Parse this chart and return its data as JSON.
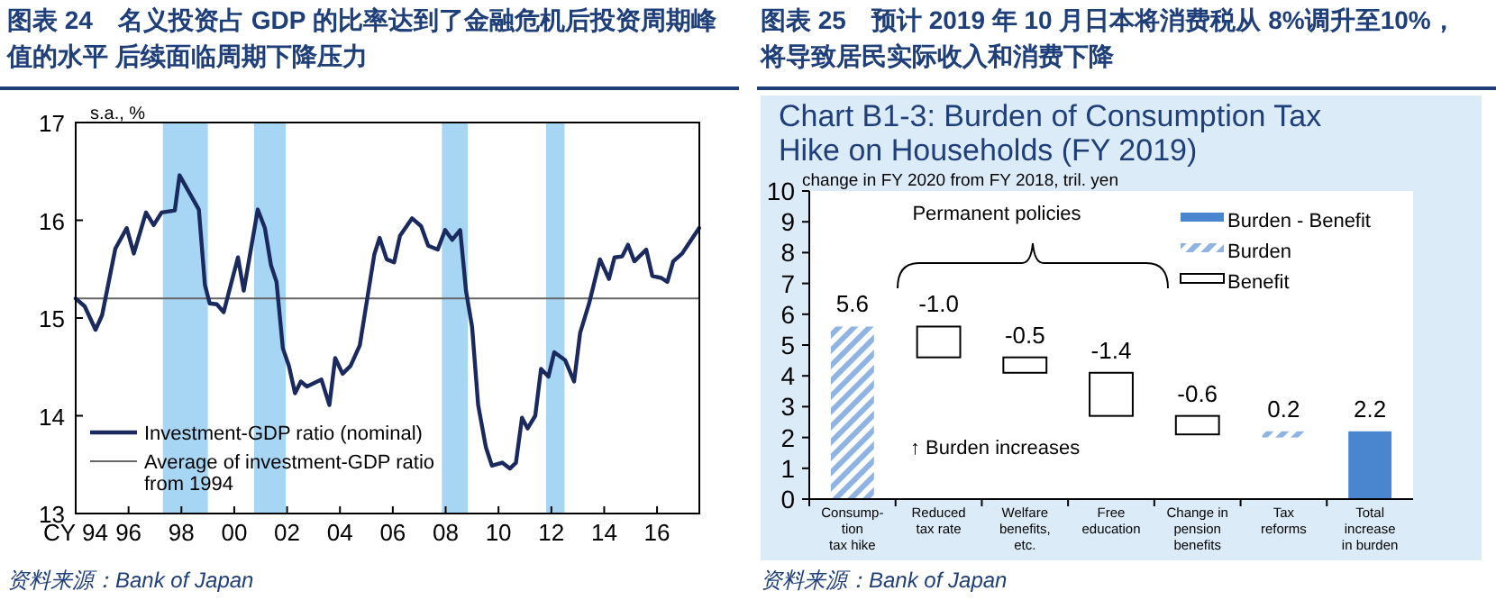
{
  "chart_data": [
    {
      "type": "line",
      "title": "图表 24　名义投资占 GDP 的比率达到了金融危机后投资周期峰值的水平 后续面临周期下降压力",
      "ylabel": "s.a., %",
      "xlim": [
        1994,
        2017.6
      ],
      "ylim": [
        13,
        17
      ],
      "yticks": [
        13,
        14,
        15,
        16,
        17
      ],
      "xticks": [
        {
          "value": 1994,
          "label": "CY 94"
        },
        {
          "value": 1996,
          "label": "96"
        },
        {
          "value": 1998,
          "label": "98"
        },
        {
          "value": 2000,
          "label": "00"
        },
        {
          "value": 2002,
          "label": "02"
        },
        {
          "value": 2004,
          "label": "04"
        },
        {
          "value": 2006,
          "label": "06"
        },
        {
          "value": 2008,
          "label": "08"
        },
        {
          "value": 2010,
          "label": "10"
        },
        {
          "value": 2012,
          "label": "12"
        },
        {
          "value": 2014,
          "label": "14"
        },
        {
          "value": 2016,
          "label": "16"
        }
      ],
      "series": [
        {
          "name": "Investment-GDP ratio (nominal)",
          "color": "#1b2a5e",
          "x": [
            1994.0,
            1994.34,
            1994.75,
            1995.0,
            1995.5,
            1995.93,
            1996.2,
            1996.66,
            1996.95,
            1997.25,
            1997.75,
            1997.93,
            1998.66,
            1998.89,
            1999.07,
            1999.34,
            1999.6,
            2000.14,
            2000.36,
            2000.89,
            2001.16,
            2001.39,
            2001.6,
            2001.84,
            2002.07,
            2002.3,
            2002.52,
            2002.75,
            2003.3,
            2003.6,
            2003.82,
            2004.1,
            2004.4,
            2004.75,
            2005.3,
            2005.5,
            2005.77,
            2006.05,
            2006.27,
            2006.73,
            2007.07,
            2007.34,
            2007.7,
            2007.98,
            2008.25,
            2008.55,
            2008.77,
            2009.0,
            2009.23,
            2009.52,
            2009.75,
            2010.14,
            2010.43,
            2010.66,
            2010.89,
            2011.1,
            2011.39,
            2011.61,
            2011.89,
            2012.11,
            2012.52,
            2012.86,
            2013.09,
            2013.43,
            2013.84,
            2014.18,
            2014.39,
            2014.68,
            2014.9,
            2015.14,
            2015.59,
            2015.82,
            2016.16,
            2016.39,
            2016.61,
            2016.95,
            2017.59
          ],
          "values": [
            15.2,
            15.12,
            14.88,
            15.03,
            15.71,
            15.92,
            15.66,
            16.08,
            15.95,
            16.08,
            16.1,
            16.46,
            16.11,
            15.34,
            15.15,
            15.14,
            15.06,
            15.62,
            15.28,
            16.11,
            15.92,
            15.54,
            15.37,
            14.69,
            14.51,
            14.23,
            14.35,
            14.3,
            14.37,
            14.11,
            14.59,
            14.43,
            14.51,
            14.72,
            15.65,
            15.82,
            15.6,
            15.57,
            15.84,
            16.02,
            15.94,
            15.74,
            15.7,
            15.9,
            15.8,
            15.9,
            15.28,
            14.91,
            14.11,
            13.68,
            13.49,
            13.52,
            13.46,
            13.52,
            13.98,
            13.87,
            14.0,
            14.48,
            14.4,
            14.65,
            14.57,
            14.35,
            14.85,
            15.15,
            15.6,
            15.4,
            15.62,
            15.63,
            15.75,
            15.58,
            15.7,
            15.43,
            15.41,
            15.37,
            15.58,
            15.66,
            15.92
          ]
        }
      ],
      "ref_lines": [
        {
          "axis": "y",
          "value": 15.2,
          "label": "Average of investment-GDP ratio\nfrom 1994",
          "color": "#666666"
        }
      ],
      "bands": [
        {
          "axis": "x",
          "from": 1997.3,
          "to": 1999.0,
          "color": "#a6d6f4"
        },
        {
          "axis": "x",
          "from": 2000.75,
          "to": 2001.95,
          "color": "#a6d6f4"
        },
        {
          "axis": "x",
          "from": 2007.86,
          "to": 2008.84,
          "color": "#a6d6f4"
        },
        {
          "axis": "x",
          "from": 2011.8,
          "to": 2012.5,
          "color": "#a6d6f4"
        }
      ],
      "legend": "bottom left",
      "annotations": [
        "资料来源：Bank of Japan"
      ]
    },
    {
      "type": "bar",
      "title": "图表 25　预计 2019 年 10 月日本将消费税从 8%调升至10%，将导致居民实际收入和消费下降",
      "subtitle": "Chart B1-3: Burden of Consumption Tax\nHike on Households (FY 2019)",
      "ylabel": "change in FY 2020 from FY 2018, tril. yen",
      "categories": [
        "Consump-\ntion\ntax hike",
        "Reduced\ntax rate",
        "Welfare\nbenefits,\netc.",
        "Free\neducation",
        "Change in\npension\nbenefits",
        "Tax\nreforms",
        "Total\nincrease\nin burden"
      ],
      "ylim": [
        0,
        10
      ],
      "yticks": [
        0,
        1,
        2,
        3,
        4,
        5,
        6,
        7,
        8,
        9,
        10
      ],
      "series": [
        {
          "name": "Burden - Benefit",
          "color": "#4a86d0",
          "values": [
            null,
            null,
            null,
            null,
            null,
            null,
            2.2
          ],
          "value_labels": [
            null,
            null,
            null,
            null,
            null,
            null,
            "2.2"
          ],
          "base": [
            null,
            null,
            null,
            null,
            null,
            null,
            0
          ]
        },
        {
          "name": "Burden",
          "color": "#8fb4e3",
          "values": [
            5.6,
            null,
            null,
            null,
            null,
            0.2,
            null
          ],
          "value_labels": [
            "5.6",
            null,
            null,
            null,
            null,
            "0.2",
            null
          ],
          "base": [
            0,
            null,
            null,
            null,
            null,
            2.0,
            null
          ]
        },
        {
          "name": "Benefit",
          "color": "#ffffff",
          "values": [
            null,
            -1.0,
            -0.5,
            -1.4,
            -0.6,
            null,
            null
          ],
          "value_labels": [
            null,
            "-1.0",
            "-0.5",
            "-1.4",
            "-0.6",
            null,
            null
          ],
          "base": [
            null,
            5.6,
            4.6,
            4.1,
            2.7,
            null,
            null
          ]
        }
      ],
      "legend": "top right",
      "annotations": [
        "Permanent policies",
        "↑ Burden increases",
        "资料来源：Bank of Japan"
      ]
    }
  ]
}
